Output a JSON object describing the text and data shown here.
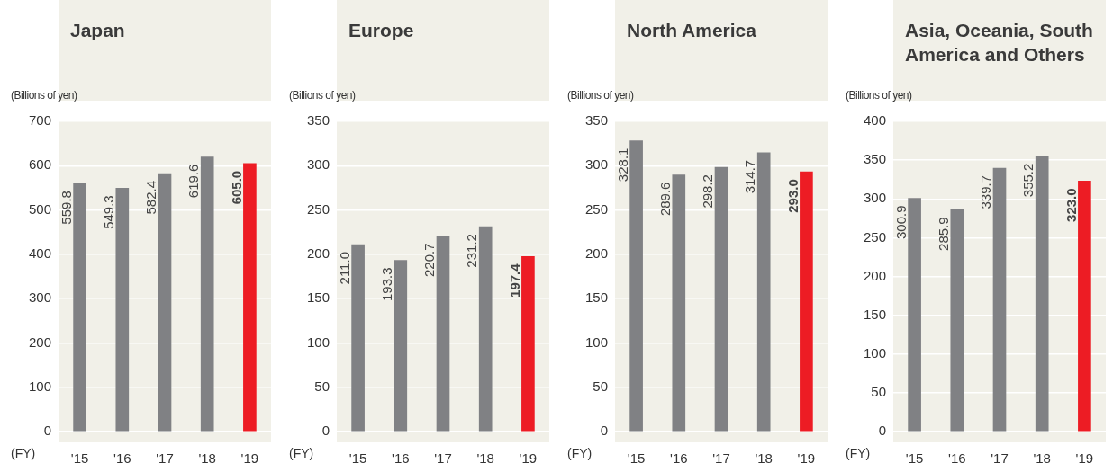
{
  "chart_data": [
    {
      "type": "bar",
      "title": "Japan",
      "ylabel": "(Billions of yen)",
      "xlabel": "(FY)",
      "categories": [
        "'15",
        "'16",
        "'17",
        "'18",
        "'19"
      ],
      "values": [
        559.8,
        549.3,
        582.4,
        619.6,
        605.0
      ],
      "colors": [
        "#808184",
        "#808184",
        "#808184",
        "#808184",
        "#ed1c24"
      ],
      "value_labels": [
        "559.8",
        "549.3",
        "582.4",
        "619.6",
        "605.0"
      ],
      "ylim": [
        0,
        700
      ],
      "yticks": [
        0,
        100,
        200,
        300,
        400,
        500,
        600,
        700
      ],
      "grid": "y"
    },
    {
      "type": "bar",
      "title": "Europe",
      "ylabel": "(Billions of yen)",
      "xlabel": "(FY)",
      "categories": [
        "'15",
        "'16",
        "'17",
        "'18",
        "'19"
      ],
      "values": [
        211.0,
        193.3,
        220.7,
        231.2,
        197.4
      ],
      "colors": [
        "#808184",
        "#808184",
        "#808184",
        "#808184",
        "#ed1c24"
      ],
      "value_labels": [
        "211.0",
        "193.3",
        "220.7",
        "231.2",
        "197.4"
      ],
      "ylim": [
        0,
        350
      ],
      "yticks": [
        0,
        50,
        100,
        150,
        200,
        250,
        300,
        350
      ],
      "grid": "y"
    },
    {
      "type": "bar",
      "title": "North America",
      "ylabel": "(Billions of yen)",
      "xlabel": "(FY)",
      "categories": [
        "'15",
        "'16",
        "'17",
        "'18",
        "'19"
      ],
      "values": [
        328.1,
        289.6,
        298.2,
        314.7,
        293.0
      ],
      "colors": [
        "#808184",
        "#808184",
        "#808184",
        "#808184",
        "#ed1c24"
      ],
      "value_labels": [
        "328.1",
        "289.6",
        "298.2",
        "314.7",
        "293.0"
      ],
      "ylim": [
        0,
        350
      ],
      "yticks": [
        0,
        50,
        100,
        150,
        200,
        250,
        300,
        350
      ],
      "grid": "y"
    },
    {
      "type": "bar",
      "title": "Asia, Oceania, South America and Others",
      "ylabel": "(Billions of yen)",
      "xlabel": "(FY)",
      "categories": [
        "'15",
        "'16",
        "'17",
        "'18",
        "'19"
      ],
      "values": [
        300.9,
        285.9,
        339.7,
        355.2,
        323.0
      ],
      "colors": [
        "#808184",
        "#808184",
        "#808184",
        "#808184",
        "#ed1c24"
      ],
      "value_labels": [
        "300.9",
        "285.9",
        "339.7",
        "355.2",
        "323.0"
      ],
      "ylim": [
        0,
        400
      ],
      "yticks": [
        0,
        50,
        100,
        150,
        200,
        250,
        300,
        350,
        400
      ],
      "grid": "y"
    }
  ]
}
